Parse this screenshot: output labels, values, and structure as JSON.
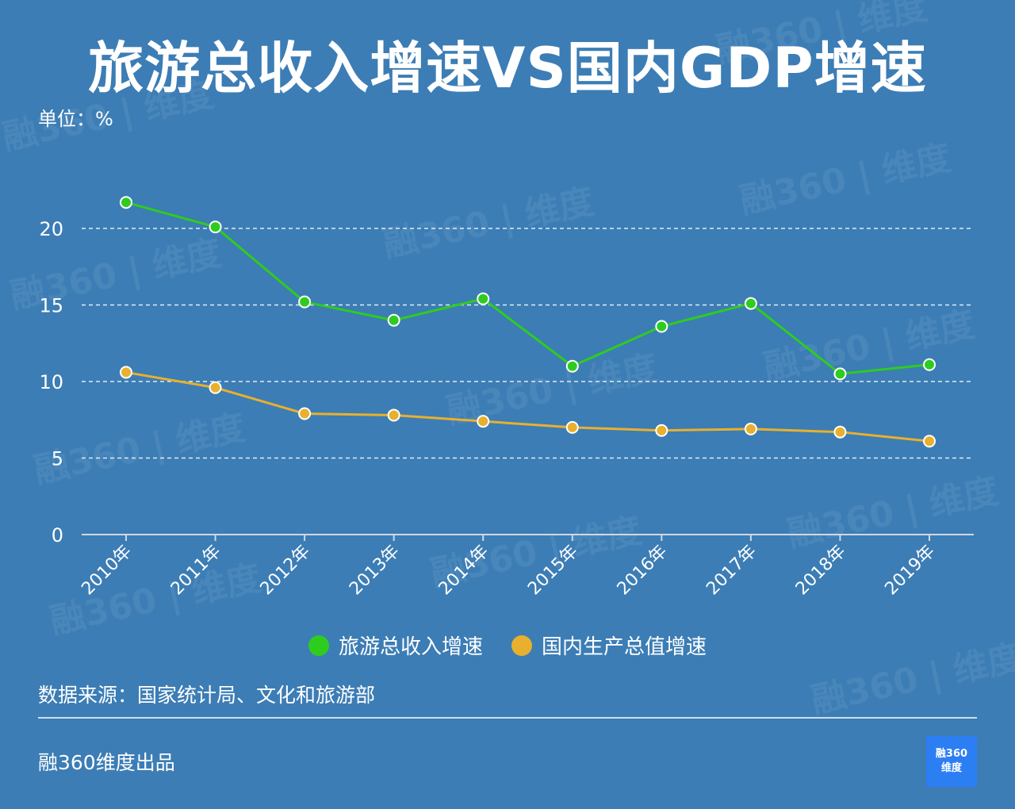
{
  "header": {
    "title": "旅游总收入增速VS国内GDP增速",
    "unit": "单位：%"
  },
  "watermark_text": "融360 | 维度",
  "chart_data": {
    "type": "line",
    "title": "旅游总收入增速VS国内GDP增速",
    "ylabel": "单位：%",
    "xlabel": "",
    "categories": [
      "2010年",
      "2011年",
      "2012年",
      "2013年",
      "2014年",
      "2015年",
      "2016年",
      "2017年",
      "2018年",
      "2019年"
    ],
    "y_ticks": [
      0,
      5,
      10,
      15,
      20
    ],
    "ylim": [
      0,
      25
    ],
    "grid": "horizontal dashed",
    "legend_position": "bottom",
    "series": [
      {
        "name": "旅游总收入增速",
        "color": "#2ecc1f",
        "values": [
          21.7,
          20.1,
          15.2,
          14.0,
          15.4,
          11.0,
          13.6,
          15.1,
          10.5,
          11.1
        ]
      },
      {
        "name": "国内生产总值增速",
        "color": "#e8b02e",
        "values": [
          10.6,
          9.6,
          7.9,
          7.8,
          7.4,
          7.0,
          6.8,
          6.9,
          6.7,
          6.1
        ]
      }
    ]
  },
  "source": "数据来源：国家统计局、文化和旅游部",
  "footer": "融360维度出品",
  "logo": {
    "line1": "融360",
    "line2": "维度"
  }
}
